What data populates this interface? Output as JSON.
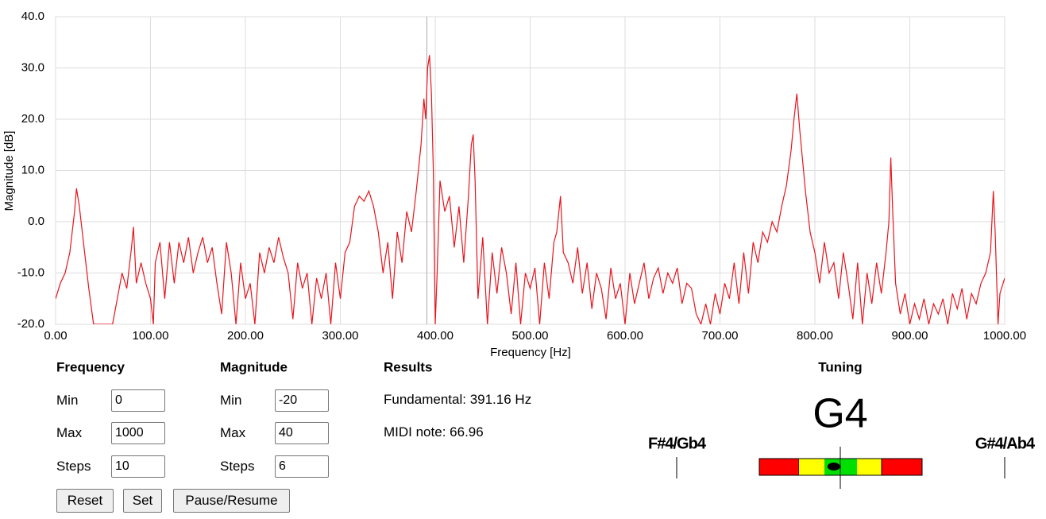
{
  "chart_data": {
    "type": "line",
    "xlabel": "Frequency [Hz]",
    "ylabel": "Magnitude [dB]",
    "x": [
      0,
      5,
      10,
      15,
      20,
      22,
      25,
      30,
      35,
      40,
      45,
      50,
      55,
      60,
      65,
      70,
      75,
      80,
      82,
      85,
      90,
      95,
      100,
      103,
      105,
      110,
      115,
      120,
      125,
      130,
      135,
      140,
      145,
      150,
      155,
      160,
      165,
      170,
      175,
      180,
      185,
      190,
      195,
      200,
      205,
      210,
      215,
      220,
      225,
      230,
      235,
      240,
      245,
      250,
      255,
      260,
      265,
      270,
      275,
      280,
      285,
      290,
      295,
      300,
      305,
      310,
      315,
      320,
      325,
      330,
      335,
      340,
      345,
      350,
      355,
      360,
      365,
      370,
      375,
      380,
      385,
      388,
      390,
      392,
      394,
      396,
      398,
      400,
      402,
      405,
      410,
      415,
      420,
      425,
      430,
      435,
      438,
      440,
      442,
      445,
      450,
      455,
      460,
      465,
      470,
      475,
      480,
      485,
      490,
      495,
      500,
      505,
      510,
      515,
      520,
      525,
      528,
      532,
      535,
      540,
      545,
      550,
      555,
      560,
      565,
      570,
      575,
      580,
      585,
      590,
      595,
      600,
      605,
      610,
      615,
      620,
      625,
      630,
      635,
      640,
      645,
      650,
      655,
      660,
      665,
      670,
      675,
      680,
      685,
      690,
      695,
      700,
      705,
      710,
      715,
      720,
      725,
      730,
      735,
      740,
      745,
      750,
      755,
      760,
      765,
      770,
      775,
      778,
      781,
      784,
      787,
      790,
      795,
      800,
      805,
      810,
      815,
      820,
      825,
      830,
      835,
      840,
      845,
      850,
      855,
      860,
      865,
      870,
      875,
      878,
      880,
      882,
      885,
      890,
      895,
      900,
      905,
      910,
      915,
      920,
      925,
      930,
      935,
      940,
      945,
      950,
      955,
      960,
      965,
      970,
      975,
      980,
      985,
      988,
      990,
      993,
      995,
      1000
    ],
    "series": [
      {
        "color": "#e8141c",
        "values": [
          -15,
          -12,
          -10,
          -6,
          2,
          6.5,
          3,
          -5,
          -13,
          -20,
          -20,
          -20,
          -20,
          -20,
          -15,
          -10,
          -13,
          -5,
          -1,
          -12,
          -8,
          -12,
          -15,
          -20,
          -8,
          -4,
          -15,
          -4,
          -12,
          -4,
          -8,
          -3,
          -10,
          -6,
          -3,
          -8,
          -5,
          -12,
          -18,
          -4,
          -10,
          -20,
          -8,
          -15,
          -12,
          -20,
          -6,
          -10,
          -5,
          -8,
          -3,
          -7,
          -10,
          -19,
          -8,
          -13,
          -10,
          -20,
          -11,
          -15,
          -10,
          -20,
          -8,
          -15,
          -6,
          -4,
          3,
          5,
          4,
          6,
          3,
          -2,
          -10,
          -4,
          -15,
          -2,
          -8,
          2,
          -2,
          6,
          15,
          24,
          20,
          30,
          32.5,
          25,
          10,
          -20,
          -10,
          8,
          2,
          5,
          -5,
          3,
          -8,
          5,
          15,
          17,
          8,
          -15,
          -3,
          -20,
          -6,
          -14,
          -5,
          -10,
          -18,
          -8,
          -20,
          -10,
          -13,
          -9,
          -20,
          -8,
          -15,
          -4,
          -2,
          5,
          -6,
          -8,
          -12,
          -5,
          -14,
          -8,
          -17,
          -10,
          -13,
          -19,
          -9,
          -15,
          -12,
          -20,
          -10,
          -16,
          -12,
          -8,
          -15,
          -11,
          -9,
          -14,
          -10,
          -12,
          -9,
          -16,
          -12,
          -13,
          -18,
          -20,
          -16,
          -20,
          -14,
          -18,
          -12,
          -15,
          -8,
          -16,
          -6,
          -14,
          -4,
          -8,
          -2,
          -4,
          0,
          -2,
          3,
          7,
          14,
          20,
          25,
          18,
          12,
          6,
          -2,
          -6,
          -12,
          -4,
          -10,
          -8,
          -15,
          -6,
          -12,
          -19,
          -8,
          -20,
          -10,
          -16,
          -8,
          -14,
          -6,
          0,
          12.5,
          2,
          -12,
          -18,
          -14,
          -20,
          -16,
          -19,
          -15,
          -20,
          -16,
          -18,
          -15,
          -20,
          -14,
          -17,
          -13,
          -19,
          -14,
          -16,
          -12,
          -10,
          -6,
          6,
          -2,
          -20,
          -14,
          -11
        ]
      }
    ],
    "xlim": [
      0,
      1000
    ],
    "ylim": [
      -20,
      40
    ],
    "xticks": [
      {
        "value": 0,
        "label": "0.00"
      },
      {
        "value": 100,
        "label": "100.00"
      },
      {
        "value": 200,
        "label": "200.00"
      },
      {
        "value": 300,
        "label": "300.00"
      },
      {
        "value": 400,
        "label": "400.00"
      },
      {
        "value": 500,
        "label": "500.00"
      },
      {
        "value": 600,
        "label": "600.00"
      },
      {
        "value": 700,
        "label": "700.00"
      },
      {
        "value": 800,
        "label": "800.00"
      },
      {
        "value": 900,
        "label": "900.00"
      },
      {
        "value": 1000,
        "label": "1000.00"
      }
    ],
    "yticks": [
      {
        "value": -20,
        "label": "-20.0"
      },
      {
        "value": -10,
        "label": "-10.0"
      },
      {
        "value": 0,
        "label": "0.0"
      },
      {
        "value": 10,
        "label": "10.0"
      },
      {
        "value": 20,
        "label": "20.0"
      },
      {
        "value": 30,
        "label": "30.0"
      },
      {
        "value": 40,
        "label": "40.0"
      }
    ],
    "grid": true
  },
  "controls": {
    "frequency": {
      "title": "Frequency",
      "rows": [
        {
          "label": "Min",
          "value": 0
        },
        {
          "label": "Max",
          "value": 1000
        },
        {
          "label": "Steps",
          "value": 10
        }
      ]
    },
    "magnitude": {
      "title": "Magnitude",
      "rows": [
        {
          "label": "Min",
          "value": -20
        },
        {
          "label": "Max",
          "value": 40
        },
        {
          "label": "Steps",
          "value": 6
        }
      ]
    },
    "buttons": [
      "Reset",
      "Set",
      "Pause/Resume"
    ]
  },
  "results": {
    "title": "Results",
    "fundamental": {
      "label": "Fundamental:",
      "value": 391.16,
      "unit": "Hz"
    },
    "midi": {
      "label": "MIDI note:",
      "value": 66.96
    }
  },
  "tuning": {
    "title": "Tuning",
    "note": "G4",
    "lower": "F#4/Gb4",
    "upper": "G#4/Ab4"
  }
}
